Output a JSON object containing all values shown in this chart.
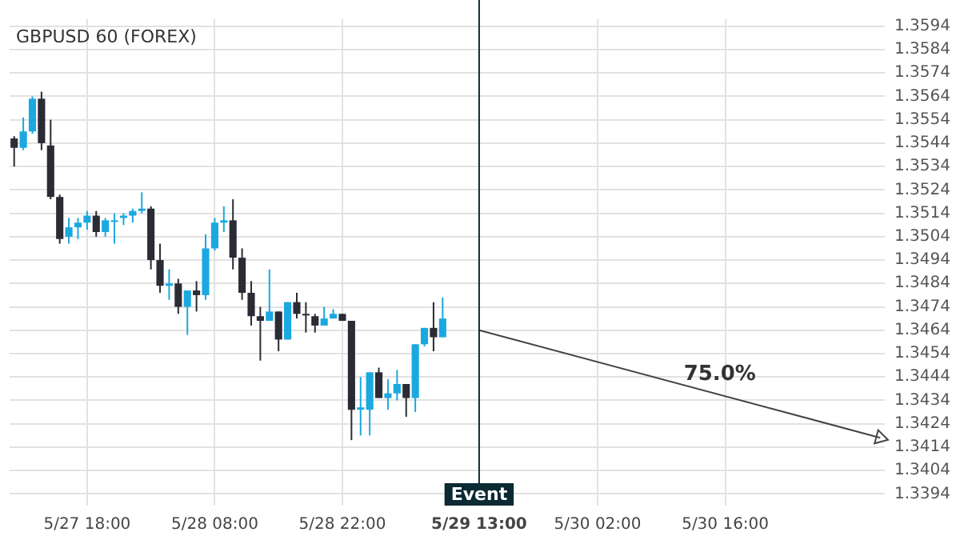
{
  "chart_data": {
    "type": "candlestick",
    "title": "GBPUSD 60 (FOREX)",
    "categories": [
      null,
      null,
      null,
      null,
      null,
      null,
      null,
      null,
      "5/27 18:00",
      null,
      null,
      null,
      null,
      null,
      null,
      null,
      null,
      null,
      null,
      null,
      null,
      null,
      "5/28 08:00",
      null,
      null,
      null,
      null,
      null,
      null,
      null,
      null,
      null,
      null,
      null,
      null,
      null,
      "5/28 22:00",
      null,
      null,
      null,
      null,
      null,
      null,
      null,
      null,
      null,
      null,
      null,
      null,
      null,
      null,
      "5/29 13:00",
      null,
      null,
      null,
      null,
      null,
      null,
      null,
      null,
      null,
      null,
      null,
      null,
      "5/30 02:00",
      null,
      null,
      null,
      null,
      null,
      null,
      null,
      null,
      null,
      null,
      null,
      null,
      null,
      "5/30 16:00",
      null,
      null,
      null,
      null,
      null,
      null,
      null,
      null,
      null,
      null,
      null,
      null,
      null,
      null,
      null,
      null,
      null
    ],
    "ohlc": [
      [
        1.3546,
        1.3547,
        1.3534,
        1.3542
      ],
      [
        1.3542,
        1.3555,
        1.3541,
        1.3549
      ],
      [
        1.3549,
        1.3564,
        1.3548,
        1.3563
      ],
      [
        1.3563,
        1.3566,
        1.3541,
        1.3544
      ],
      [
        1.3543,
        1.3554,
        1.352,
        1.3521
      ],
      [
        1.3521,
        1.3522,
        1.3501,
        1.3503
      ],
      [
        1.3504,
        1.3512,
        1.3501,
        1.3508
      ],
      [
        1.3508,
        1.3512,
        1.3503,
        1.351
      ],
      [
        1.351,
        1.3515,
        1.3507,
        1.3513
      ],
      [
        1.3513,
        1.3515,
        1.3504,
        1.3506
      ],
      [
        1.3506,
        1.3512,
        1.3504,
        1.3511
      ],
      [
        1.3511,
        1.3514,
        1.3501,
        1.3511
      ],
      [
        1.3512,
        1.3514,
        1.3509,
        1.3513
      ],
      [
        1.3513,
        1.3516,
        1.351,
        1.3515
      ],
      [
        1.3515,
        1.3523,
        1.3514,
        1.3516
      ],
      [
        1.3516,
        1.3517,
        1.349,
        1.3494
      ],
      [
        1.3494,
        1.3501,
        1.348,
        1.3483
      ],
      [
        1.3483,
        1.349,
        1.3477,
        1.3484
      ],
      [
        1.3484,
        1.3486,
        1.3471,
        1.3474
      ],
      [
        1.3474,
        1.3481,
        1.3462,
        1.3481
      ],
      [
        1.3481,
        1.3485,
        1.3472,
        1.3479
      ],
      [
        1.3479,
        1.3505,
        1.3477,
        1.3499
      ],
      [
        1.3499,
        1.3512,
        1.3498,
        1.351
      ],
      [
        1.351,
        1.3517,
        1.3506,
        1.3511
      ],
      [
        1.3511,
        1.352,
        1.349,
        1.3495
      ],
      [
        1.3495,
        1.3499,
        1.3477,
        1.348
      ],
      [
        1.348,
        1.3485,
        1.3466,
        1.347
      ],
      [
        1.347,
        1.3474,
        1.3451,
        1.3468
      ],
      [
        1.3468,
        1.349,
        1.3468,
        1.3472
      ],
      [
        1.3472,
        1.3472,
        1.3455,
        1.346
      ],
      [
        1.346,
        1.3476,
        1.346,
        1.3476
      ],
      [
        1.3476,
        1.348,
        1.3469,
        1.3471
      ],
      [
        1.3471,
        1.3476,
        1.3463,
        1.3471
      ],
      [
        1.347,
        1.3471,
        1.3463,
        1.3466
      ],
      [
        1.3466,
        1.3474,
        1.3466,
        1.3469
      ],
      [
        1.3469,
        1.3473,
        1.3469,
        1.3471
      ],
      [
        1.3471,
        1.3471,
        1.3468,
        1.3468
      ],
      [
        1.3468,
        1.3468,
        1.3417,
        1.343
      ],
      [
        1.343,
        1.3444,
        1.3419,
        1.3431
      ],
      [
        1.343,
        1.3446,
        1.3419,
        1.3446
      ],
      [
        1.3446,
        1.3448,
        1.3435,
        1.3435
      ],
      [
        1.3435,
        1.3443,
        1.343,
        1.3437
      ],
      [
        1.3437,
        1.3447,
        1.3434,
        1.3441
      ],
      [
        1.3441,
        1.3441,
        1.3427,
        1.3435
      ],
      [
        1.3435,
        1.3458,
        1.3429,
        1.3458
      ],
      [
        1.3458,
        1.3465,
        1.3457,
        1.3465
      ],
      [
        1.3465,
        1.3476,
        1.3455,
        1.3461
      ],
      [
        1.3461,
        1.3478,
        1.3461,
        1.3469
      ],
      null,
      null,
      null,
      null,
      null,
      null,
      null,
      null,
      null,
      null,
      null,
      null,
      null,
      null,
      null,
      null,
      null,
      null,
      null,
      null,
      null,
      null,
      null,
      null,
      null,
      null,
      null,
      null,
      null,
      null,
      null,
      null,
      null,
      null,
      null,
      null,
      null,
      null,
      null,
      null,
      null,
      null,
      null,
      null,
      null,
      null,
      null,
      null
    ],
    "colors": [
      "#2b2b35",
      "#1ba8e0",
      "#1ba8e0",
      "#2b2b35",
      "#2b2b35",
      "#2b2b35",
      "#1ba8e0",
      "#1ba8e0",
      "#1ba8e0",
      "#2b2b35",
      "#1ba8e0",
      "#1ba8e0",
      "#1ba8e0",
      "#1ba8e0",
      "#1ba8e0",
      "#2b2b35",
      "#2b2b35",
      "#1ba8e0",
      "#2b2b35",
      "#1ba8e0",
      "#2b2b35",
      "#1ba8e0",
      "#1ba8e0",
      "#1ba8e0",
      "#2b2b35",
      "#2b2b35",
      "#2b2b35",
      "#2b2b35",
      "#1ba8e0",
      "#2b2b35",
      "#1ba8e0",
      "#2b2b35",
      "#2b2b35",
      "#2b2b35",
      "#1ba8e0",
      "#1ba8e0",
      "#2b2b35",
      "#2b2b35",
      "#1ba8e0",
      "#1ba8e0",
      "#2b2b35",
      "#1ba8e0",
      "#1ba8e0",
      "#2b2b35",
      "#1ba8e0",
      "#1ba8e0",
      "#2b2b35",
      "#1ba8e0",
      null,
      null,
      null,
      null,
      null,
      null,
      null,
      null,
      null,
      null,
      null,
      null,
      null,
      null,
      null,
      null,
      null,
      null,
      null,
      null,
      null,
      null,
      null,
      null,
      null,
      null,
      null,
      null,
      null,
      null,
      null,
      null,
      null,
      null,
      null,
      null,
      null,
      null,
      null,
      null,
      null,
      null,
      null,
      null,
      null,
      null,
      null,
      null
    ],
    "series": [
      {
        "type": "line",
        "color": "#444444",
        "values": [
          null,
          null,
          null,
          null,
          null,
          null,
          null,
          null,
          null,
          null,
          null,
          null,
          null,
          null,
          null,
          null,
          null,
          null,
          null,
          null,
          null,
          null,
          null,
          null,
          null,
          null,
          null,
          null,
          null,
          null,
          null,
          null,
          null,
          null,
          null,
          null,
          null,
          null,
          null,
          null,
          null,
          null,
          null,
          null,
          null,
          null,
          null,
          null,
          null,
          null,
          null,
          1.3464,
          null,
          null,
          null,
          null,
          null,
          null,
          null,
          null,
          null,
          null,
          null,
          null,
          null,
          null,
          null,
          null,
          null,
          null,
          null,
          null,
          null,
          null,
          null,
          null,
          null,
          null,
          null,
          null,
          null,
          null,
          null,
          null,
          null,
          null,
          null,
          null,
          null,
          null,
          null,
          null,
          null,
          null,
          null,
          1.3418
        ]
      }
    ],
    "ylim": [
      1.3389,
      1.3597
    ],
    "yticks": [
      1.3394,
      1.3404,
      1.3414,
      1.3424,
      1.3434,
      1.3444,
      1.3454,
      1.3464,
      1.3474,
      1.3484,
      1.3494,
      1.3504,
      1.3514,
      1.3524,
      1.3534,
      1.3544,
      1.3554,
      1.3564,
      1.3574,
      1.3584,
      1.3594
    ],
    "ref_lines": [
      {
        "axis": "x",
        "value": "5/29 13:00",
        "label": "Event",
        "color": "#0b2a33"
      }
    ],
    "annotations": [
      "75.0%"
    ],
    "grid": true,
    "legend": false
  }
}
